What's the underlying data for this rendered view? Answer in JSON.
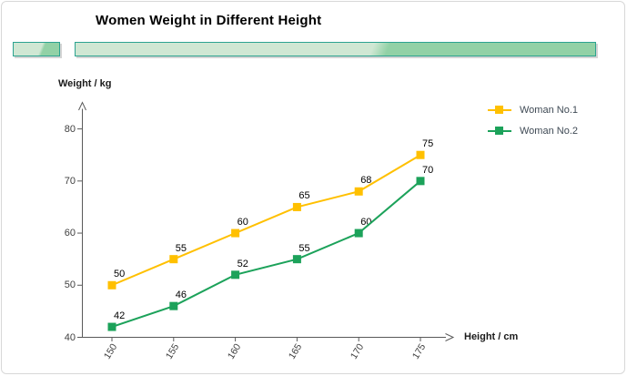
{
  "header": {
    "title": "Women Weight in Different Height",
    "bar_small_colors": {
      "light": "#cfe7d3",
      "dark": "#92d1a6",
      "border": "#2ba390"
    },
    "bar_large_colors": {
      "light": "#cfe7d3",
      "dark": "#92d1a6",
      "border": "#2ba390"
    }
  },
  "axes": {
    "y_title": "Weight / kg",
    "x_title": "Height / cm",
    "axis_color": "#595959",
    "tick_label_color": "#404040"
  },
  "legend": {
    "items": [
      {
        "label": "Woman No.1",
        "color": "#FFC000"
      },
      {
        "label": "Woman No.2",
        "color": "#1CA25A"
      }
    ]
  },
  "chart_data": {
    "type": "line",
    "title": "Women Weight in Different Height",
    "xlabel": "Height / cm",
    "ylabel": "Weight / kg",
    "x": [
      150,
      155,
      160,
      165,
      170,
      175
    ],
    "series": [
      {
        "name": "Woman No.1",
        "color": "#FFC000",
        "values": [
          50,
          55,
          60,
          65,
          68,
          75
        ]
      },
      {
        "name": "Woman No.2",
        "color": "#1CA25A",
        "values": [
          42,
          46,
          52,
          55,
          60,
          70
        ]
      }
    ],
    "ylim": [
      40,
      80
    ],
    "yticks": [
      40,
      50,
      60,
      70,
      80
    ],
    "grid": false,
    "marker": "square",
    "data_labels": true,
    "legend_position": "top-right",
    "x_tick_rotation": -58
  }
}
